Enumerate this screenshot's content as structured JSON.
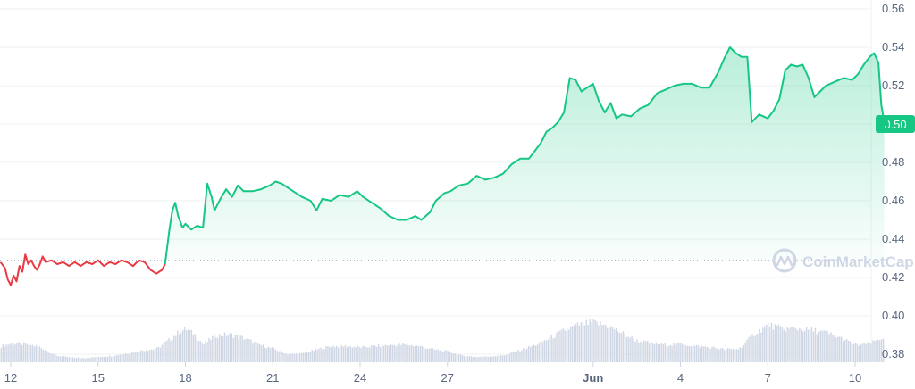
{
  "chart_data": {
    "type": "area",
    "title": "",
    "xlabel": "",
    "ylabel": "",
    "ylim": [
      0.37,
      0.565
    ],
    "grid": true,
    "y_ticks": [
      "0.56",
      "0.54",
      "0.52",
      "0.50",
      "0.48",
      "0.46",
      "0.44",
      "0.42",
      "0.40",
      "0.38"
    ],
    "x_ticks": [
      {
        "label": "12",
        "day": 0
      },
      {
        "label": "15",
        "day": 3
      },
      {
        "label": "18",
        "day": 6
      },
      {
        "label": "21",
        "day": 9
      },
      {
        "label": "24",
        "day": 12
      },
      {
        "label": "27",
        "day": 15
      },
      {
        "label": "Jun",
        "day": 20,
        "bold": true
      },
      {
        "label": "4",
        "day": 23
      },
      {
        "label": "7",
        "day": 26
      },
      {
        "label": "10",
        "day": 29
      }
    ],
    "current_price": "0.50",
    "reference_price": 0.429,
    "colors": {
      "up": "#16c784",
      "down": "#ea3943",
      "volume": "#cfd6e4",
      "grid": "#eff2f5"
    },
    "series": [
      {
        "values": [
          [
            -0.35,
            0.428
          ],
          [
            -0.2,
            0.425
          ],
          [
            -0.1,
            0.419
          ],
          [
            0.0,
            0.416
          ],
          [
            0.1,
            0.421
          ],
          [
            0.2,
            0.418
          ],
          [
            0.3,
            0.426
          ],
          [
            0.4,
            0.423
          ],
          [
            0.5,
            0.432
          ],
          [
            0.6,
            0.427
          ],
          [
            0.7,
            0.429
          ],
          [
            0.8,
            0.426
          ],
          [
            0.9,
            0.424
          ],
          [
            1.0,
            0.427
          ],
          [
            1.1,
            0.431
          ],
          [
            1.2,
            0.428
          ],
          [
            1.4,
            0.429
          ],
          [
            1.6,
            0.427
          ],
          [
            1.8,
            0.428
          ],
          [
            2.0,
            0.426
          ],
          [
            2.2,
            0.428
          ],
          [
            2.4,
            0.426
          ],
          [
            2.6,
            0.428
          ],
          [
            2.8,
            0.427
          ],
          [
            3.0,
            0.429
          ],
          [
            3.2,
            0.426
          ],
          [
            3.4,
            0.428
          ],
          [
            3.6,
            0.427
          ],
          [
            3.8,
            0.429
          ],
          [
            4.0,
            0.428
          ],
          [
            4.2,
            0.426
          ],
          [
            4.4,
            0.429
          ],
          [
            4.6,
            0.428
          ],
          [
            4.8,
            0.424
          ],
          [
            5.0,
            0.422
          ],
          [
            5.2,
            0.424
          ],
          [
            5.3,
            0.427
          ],
          [
            5.35,
            0.433
          ],
          [
            5.45,
            0.445
          ],
          [
            5.55,
            0.455
          ],
          [
            5.65,
            0.459
          ],
          [
            5.75,
            0.452
          ],
          [
            5.9,
            0.446
          ],
          [
            6.0,
            0.448
          ],
          [
            6.2,
            0.445
          ],
          [
            6.4,
            0.447
          ],
          [
            6.6,
            0.446
          ],
          [
            6.75,
            0.469
          ],
          [
            6.9,
            0.462
          ],
          [
            7.0,
            0.455
          ],
          [
            7.2,
            0.461
          ],
          [
            7.4,
            0.466
          ],
          [
            7.6,
            0.462
          ],
          [
            7.8,
            0.468
          ],
          [
            8.0,
            0.465
          ],
          [
            8.3,
            0.465
          ],
          [
            8.6,
            0.466
          ],
          [
            8.9,
            0.468
          ],
          [
            9.1,
            0.47
          ],
          [
            9.3,
            0.469
          ],
          [
            9.5,
            0.467
          ],
          [
            9.7,
            0.465
          ],
          [
            10.0,
            0.462
          ],
          [
            10.3,
            0.46
          ],
          [
            10.5,
            0.455
          ],
          [
            10.7,
            0.461
          ],
          [
            11.0,
            0.46
          ],
          [
            11.3,
            0.463
          ],
          [
            11.6,
            0.462
          ],
          [
            11.9,
            0.465
          ],
          [
            12.1,
            0.462
          ],
          [
            12.4,
            0.459
          ],
          [
            12.7,
            0.456
          ],
          [
            13.0,
            0.452
          ],
          [
            13.3,
            0.45
          ],
          [
            13.6,
            0.45
          ],
          [
            13.9,
            0.452
          ],
          [
            14.1,
            0.45
          ],
          [
            14.4,
            0.454
          ],
          [
            14.6,
            0.46
          ],
          [
            14.9,
            0.464
          ],
          [
            15.1,
            0.465
          ],
          [
            15.4,
            0.468
          ],
          [
            15.7,
            0.469
          ],
          [
            16.0,
            0.473
          ],
          [
            16.3,
            0.471
          ],
          [
            16.6,
            0.472
          ],
          [
            16.9,
            0.474
          ],
          [
            17.2,
            0.479
          ],
          [
            17.5,
            0.482
          ],
          [
            17.8,
            0.482
          ],
          [
            18.0,
            0.486
          ],
          [
            18.2,
            0.49
          ],
          [
            18.4,
            0.496
          ],
          [
            18.6,
            0.498
          ],
          [
            18.8,
            0.501
          ],
          [
            19.0,
            0.506
          ],
          [
            19.2,
            0.524
          ],
          [
            19.4,
            0.523
          ],
          [
            19.6,
            0.517
          ],
          [
            19.8,
            0.519
          ],
          [
            20.0,
            0.521
          ],
          [
            20.2,
            0.512
          ],
          [
            20.4,
            0.506
          ],
          [
            20.6,
            0.511
          ],
          [
            20.8,
            0.503
          ],
          [
            21.0,
            0.505
          ],
          [
            21.3,
            0.504
          ],
          [
            21.6,
            0.508
          ],
          [
            21.9,
            0.51
          ],
          [
            22.2,
            0.516
          ],
          [
            22.5,
            0.518
          ],
          [
            22.8,
            0.52
          ],
          [
            23.1,
            0.521
          ],
          [
            23.4,
            0.521
          ],
          [
            23.7,
            0.519
          ],
          [
            24.0,
            0.519
          ],
          [
            24.3,
            0.527
          ],
          [
            24.5,
            0.534
          ],
          [
            24.7,
            0.54
          ],
          [
            24.9,
            0.537
          ],
          [
            25.1,
            0.535
          ],
          [
            25.3,
            0.535
          ],
          [
            25.45,
            0.501
          ],
          [
            25.7,
            0.505
          ],
          [
            26.0,
            0.503
          ],
          [
            26.2,
            0.507
          ],
          [
            26.4,
            0.513
          ],
          [
            26.6,
            0.528
          ],
          [
            26.8,
            0.531
          ],
          [
            27.0,
            0.53
          ],
          [
            27.2,
            0.531
          ],
          [
            27.4,
            0.524
          ],
          [
            27.6,
            0.514
          ],
          [
            27.8,
            0.517
          ],
          [
            28.0,
            0.52
          ],
          [
            28.3,
            0.522
          ],
          [
            28.6,
            0.524
          ],
          [
            28.9,
            0.523
          ],
          [
            29.1,
            0.526
          ],
          [
            29.3,
            0.531
          ],
          [
            29.5,
            0.535
          ],
          [
            29.65,
            0.537
          ],
          [
            29.8,
            0.532
          ],
          [
            29.9,
            0.51
          ],
          [
            30.0,
            0.501
          ]
        ]
      }
    ],
    "volume": {
      "x": [
        -0.35,
        0.0,
        0.5,
        1.0,
        1.5,
        2.0,
        2.5,
        3.0,
        3.5,
        4.0,
        4.5,
        5.0,
        5.5,
        5.8,
        6.0,
        6.3,
        6.6,
        7.0,
        7.5,
        8.0,
        8.5,
        9.0,
        9.5,
        10.0,
        10.5,
        11.0,
        11.5,
        12.0,
        12.5,
        13.0,
        13.5,
        14.0,
        14.5,
        15.0,
        15.5,
        16.0,
        16.5,
        17.0,
        17.5,
        18.0,
        18.5,
        19.0,
        19.5,
        20.0,
        20.5,
        21.0,
        21.5,
        22.0,
        22.5,
        23.0,
        23.5,
        24.0,
        24.5,
        25.0,
        25.5,
        26.0,
        26.5,
        27.0,
        27.5,
        28.0,
        28.5,
        29.0,
        29.5,
        30.0
      ],
      "v": [
        0.3,
        0.35,
        0.34,
        0.28,
        0.13,
        0.09,
        0.08,
        0.1,
        0.12,
        0.17,
        0.22,
        0.25,
        0.45,
        0.58,
        0.62,
        0.52,
        0.33,
        0.5,
        0.52,
        0.45,
        0.33,
        0.25,
        0.15,
        0.16,
        0.24,
        0.3,
        0.3,
        0.28,
        0.3,
        0.32,
        0.33,
        0.3,
        0.24,
        0.2,
        0.12,
        0.1,
        0.11,
        0.14,
        0.23,
        0.32,
        0.45,
        0.6,
        0.7,
        0.74,
        0.68,
        0.54,
        0.4,
        0.35,
        0.33,
        0.34,
        0.3,
        0.28,
        0.24,
        0.25,
        0.52,
        0.7,
        0.62,
        0.63,
        0.6,
        0.55,
        0.45,
        0.32,
        0.35,
        0.48
      ]
    }
  },
  "watermark": {
    "text": "CoinMarketCap"
  }
}
